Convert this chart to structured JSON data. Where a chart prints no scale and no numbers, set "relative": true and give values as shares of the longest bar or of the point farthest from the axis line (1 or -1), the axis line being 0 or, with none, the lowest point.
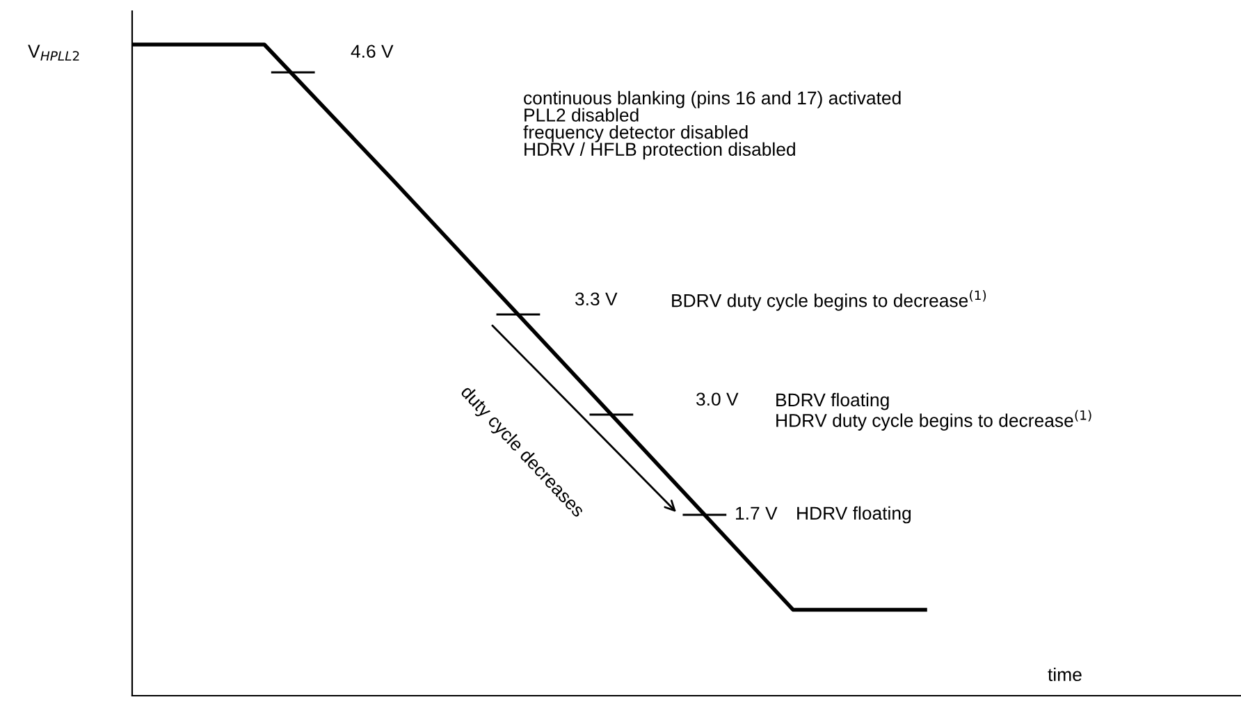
{
  "chart_data": {
    "type": "line",
    "relative": true,
    "ylabel": "V$_{HPLL2}$",
    "xlabel": "time",
    "categories": [
      null,
      null,
      null,
      null,
      null,
      null,
      null
    ],
    "series": [
      {
        "color": "#000000",
        "values": [
          1,
          1,
          0.786,
          0.568,
          0.35,
          0.132,
          0.132
        ]
      }
    ],
    "annotations": [
      "4.6 V",
      "continuous blanking (pins 16 and 17) activated\nPLL2 disabled\nfrequency detector disabled\nHDRV / HFLB protection disabled",
      "3.3 V",
      "BDRV duty cycle begins to decrease$^{(1)}$",
      "3.0 V",
      "BDRV floating\nHDRV duty cycle begins to decrease$^{(1)}$",
      "1.7 V",
      "HDRV floating",
      "duty cycle decreases"
    ],
    "marker": "none",
    "line_style": "solid",
    "grid": false,
    "legend": false
  }
}
